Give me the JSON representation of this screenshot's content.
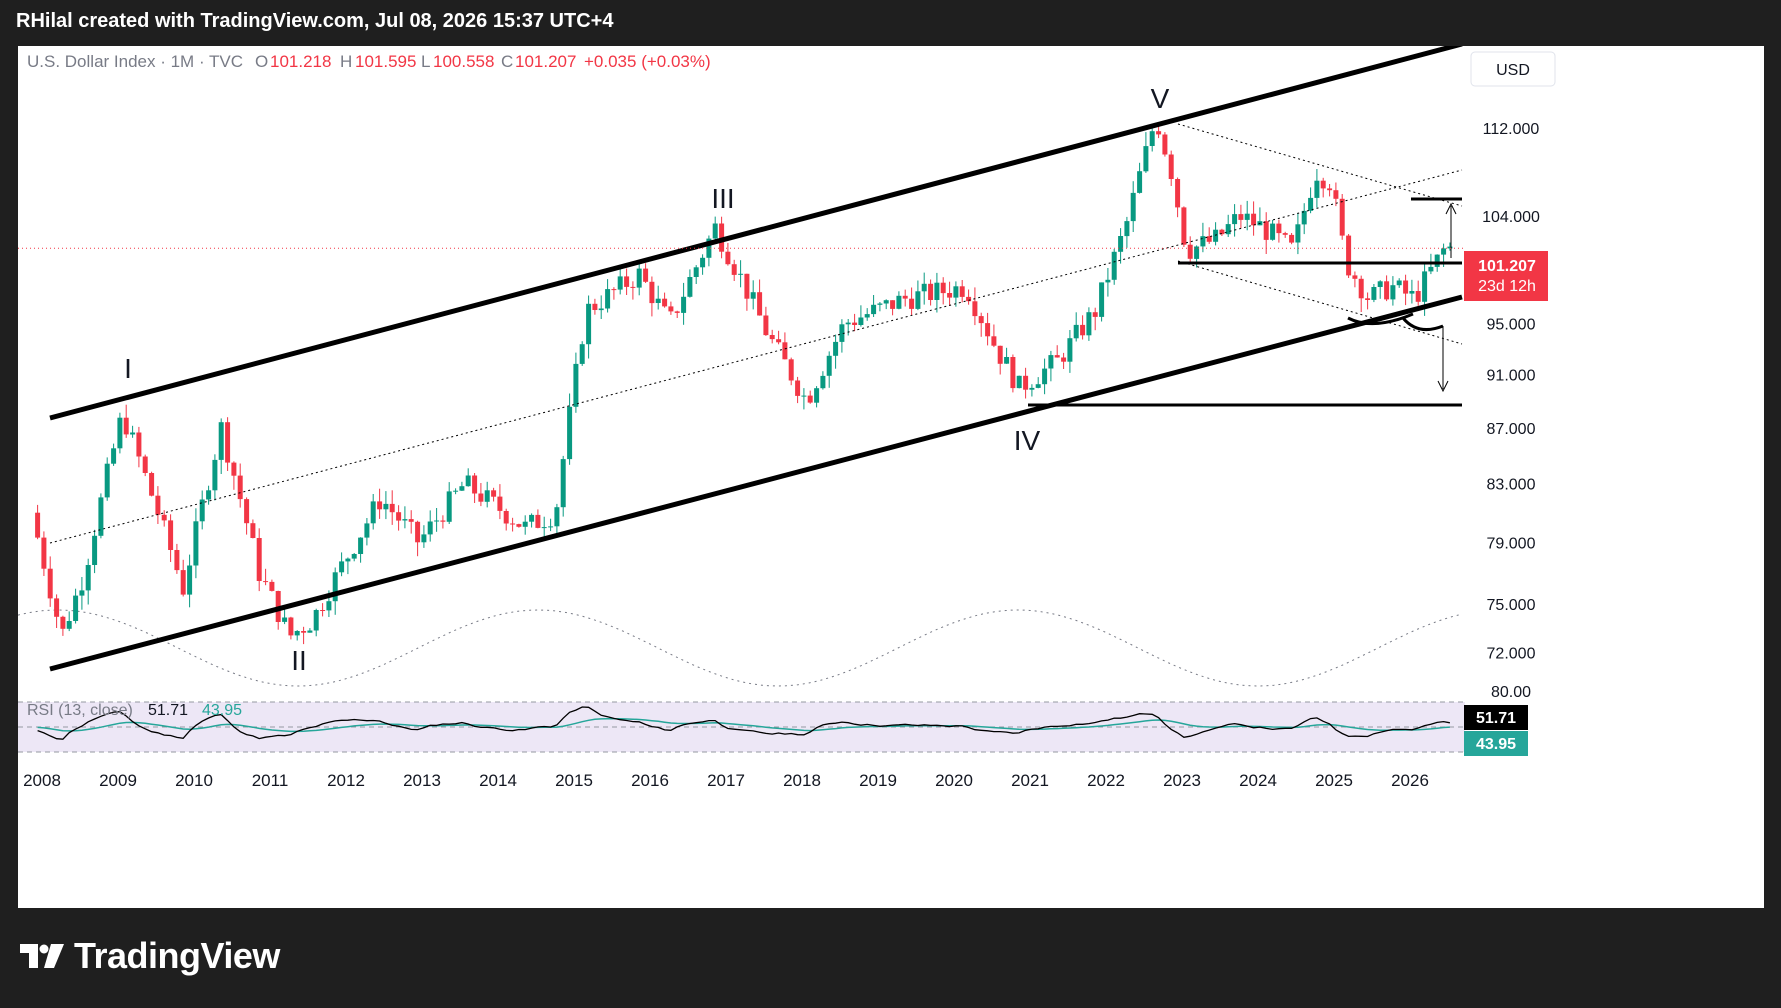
{
  "topbar": {
    "text": "RHilal created with TradingView.com, Jul 08, 2026 15:37 UTC+4"
  },
  "brand": {
    "name": "TradingView"
  },
  "header": {
    "symbol": "U.S. Dollar Index · 1M · TVC",
    "o_label": "O",
    "o_value": "101.218",
    "h_label": "H",
    "h_value": "101.595",
    "l_label": "L",
    "l_value": "100.558",
    "c_label": "C",
    "c_value": "101.207",
    "change": "+0.035 (+0.03%)"
  },
  "currency": "USD",
  "price_tag": {
    "value": "101.207",
    "countdown": "23d 12h"
  },
  "rsi": {
    "label": "RSI (13, close)",
    "value": "51.71",
    "ma_value": "43.95",
    "axis_label": "80.00"
  },
  "colors": {
    "up": "#089981",
    "down": "#f23645",
    "rsi": "#000000",
    "rsi_ma": "#26a69a",
    "band": "#ede7f6"
  },
  "chart_data": {
    "type": "candlestick",
    "title": "U.S. Dollar Index · 1M · TVC",
    "y_ticks": [
      "112.000",
      "104.000",
      "95.000",
      "91.000",
      "87.000",
      "83.000",
      "79.000",
      "75.000",
      "72.000"
    ],
    "y_tick_values": [
      112,
      104,
      95,
      91,
      87,
      83,
      79,
      75,
      72
    ],
    "x_ticks": [
      "2008",
      "2009",
      "2010",
      "2011",
      "2012",
      "2013",
      "2014",
      "2015",
      "2016",
      "2017",
      "2018",
      "2019",
      "2020",
      "2021",
      "2022",
      "2023",
      "2024",
      "2025",
      "2026"
    ],
    "wave_labels": [
      "I",
      "II",
      "III",
      "IV",
      "V"
    ],
    "ylim": [
      70,
      117
    ],
    "xlim": [
      2007.9,
      2026.6
    ],
    "log_scale": true,
    "series": [
      {
        "name": "close",
        "x": [
          2007.9,
          2008.3,
          2008.6,
          2009.1,
          2009.9,
          2010.4,
          2010.9,
          2011.3,
          2011.6,
          2012.5,
          2013.0,
          2013.6,
          2014.4,
          2014.8,
          2015.2,
          2015.9,
          2016.3,
          2016.9,
          2017.6,
          2018.1,
          2018.6,
          2019.4,
          2020.2,
          2020.6,
          2020.9,
          2021.4,
          2021.9,
          2022.3,
          2022.7,
          2022.9,
          2023.1,
          2023.5,
          2023.8,
          2024.1,
          2024.5,
          2024.8,
          2025.0,
          2025.2,
          2025.5,
          2025.8,
          2026.1,
          2026.5
        ],
        "values": [
          81,
          73,
          77,
          88,
          76,
          87,
          77,
          73,
          74,
          82,
          79,
          83,
          80,
          81,
          96,
          99,
          95,
          103,
          94,
          89,
          95,
          97,
          98,
          93,
          90,
          92,
          96,
          103,
          113,
          108,
          101,
          102,
          104,
          103,
          101,
          108,
          107,
          100,
          97,
          98,
          97,
          101.2
        ]
      }
    ],
    "horizontal_lines": [
      101.2,
      89.5,
      107.3
    ],
    "grid": false
  }
}
